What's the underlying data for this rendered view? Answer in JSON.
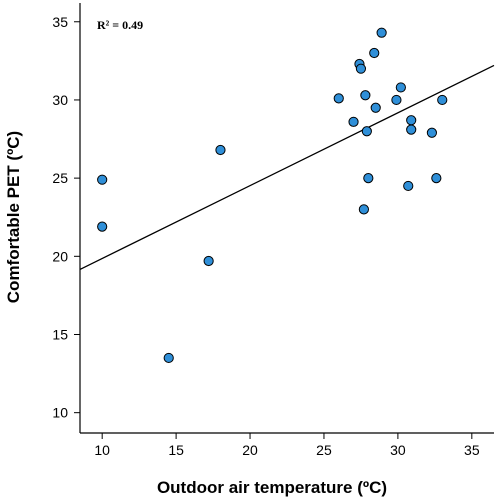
{
  "chart_data": {
    "type": "scatter",
    "xlabel": "Outdoor air temperature (ºC)",
    "ylabel": "Comfortable PET (ºC)",
    "annotation": "R² = 0.49",
    "xlim": [
      8.5,
      36.5
    ],
    "ylim": [
      8.7,
      36.2
    ],
    "xticks": [
      10,
      15,
      20,
      25,
      30,
      35
    ],
    "yticks": [
      10,
      15,
      20,
      25,
      30,
      35
    ],
    "grid": false,
    "legend": "none",
    "point_color": "#2f8fd8",
    "points": [
      {
        "x": 10.0,
        "y": 24.9
      },
      {
        "x": 10.0,
        "y": 21.9
      },
      {
        "x": 14.5,
        "y": 13.5
      },
      {
        "x": 17.2,
        "y": 19.7
      },
      {
        "x": 18.0,
        "y": 26.8
      },
      {
        "x": 26.0,
        "y": 30.1
      },
      {
        "x": 27.0,
        "y": 28.6
      },
      {
        "x": 27.4,
        "y": 32.3
      },
      {
        "x": 27.5,
        "y": 32.0
      },
      {
        "x": 27.7,
        "y": 23.0
      },
      {
        "x": 27.8,
        "y": 30.3
      },
      {
        "x": 27.9,
        "y": 28.0
      },
      {
        "x": 28.0,
        "y": 25.0
      },
      {
        "x": 28.4,
        "y": 33.0
      },
      {
        "x": 28.5,
        "y": 29.5
      },
      {
        "x": 28.9,
        "y": 34.3
      },
      {
        "x": 29.9,
        "y": 30.0
      },
      {
        "x": 30.2,
        "y": 30.8
      },
      {
        "x": 30.7,
        "y": 24.5
      },
      {
        "x": 30.9,
        "y": 28.7
      },
      {
        "x": 30.9,
        "y": 28.1
      },
      {
        "x": 32.3,
        "y": 27.9
      },
      {
        "x": 32.6,
        "y": 25.0
      },
      {
        "x": 33.0,
        "y": 30.0
      }
    ],
    "trendline": {
      "slope": 0.466,
      "intercept": 15.2
    }
  }
}
